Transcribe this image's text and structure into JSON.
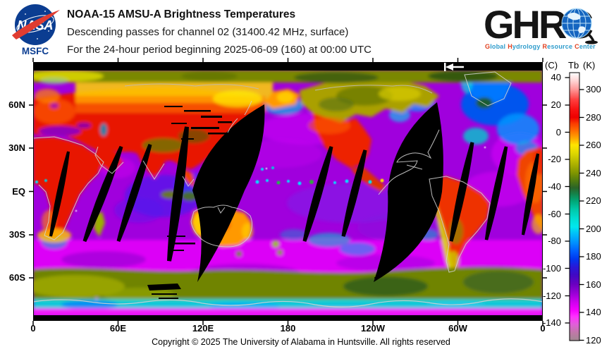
{
  "header": {
    "nasa": {
      "wordmark": "NASA",
      "caption": "MSFC"
    },
    "title": "NOAA-15 AMSU-A Brightness Temperatures",
    "subtitle1": "Descending passes for channel 02 (31400.42 MHz, surface)",
    "subtitle2": "For the 24-hour period beginning 2025-06-09 (160) at 00:00 UTC",
    "ghrc": {
      "letters": "GHRC",
      "tagline": [
        {
          "initial": "G",
          "rest": "lobal"
        },
        {
          "initial": "H",
          "rest": "ydrology"
        },
        {
          "initial": "R",
          "rest": "esource"
        },
        {
          "initial": "C",
          "rest": "enter"
        }
      ]
    }
  },
  "chart_data": {
    "type": "heatmap",
    "title": "NOAA-15 AMSU-A Brightness Temperatures",
    "projection": "equirectangular world map, 0E to 360E, 90N to 90S",
    "x_axis": {
      "tick_labels": [
        "0",
        "60E",
        "120E",
        "180",
        "120W",
        "60W",
        "0"
      ],
      "range_deg_east": [
        0,
        360
      ]
    },
    "y_axis": {
      "tick_labels": [
        "60N",
        "30N",
        "EQ",
        "30S",
        "60S"
      ],
      "range_deg_lat": [
        90,
        -90
      ]
    },
    "colorbar": {
      "unit_left": "(C)",
      "quantity": "Tb",
      "unit_right": "(K)",
      "celsius_tick_labels": [
        "40",
        "20",
        "0",
        "-20",
        "-40",
        "-60",
        "-80",
        "-100",
        "-120",
        "-140"
      ],
      "kelvin_tick_labels": [
        "300",
        "280",
        "260",
        "240",
        "220",
        "200",
        "180",
        "160",
        "140",
        "120"
      ],
      "kelvin_range_top_to_bottom": [
        312,
        120
      ],
      "gradient_stops": [
        [
          0,
          "#ffffff"
        ],
        [
          0.03,
          "#ffd5d5"
        ],
        [
          0.0625,
          "#ff9898"
        ],
        [
          0.1,
          "#ff4040"
        ],
        [
          0.135,
          "#f81414"
        ],
        [
          0.167,
          "#ee0000"
        ],
        [
          0.19,
          "#fa3c00"
        ],
        [
          0.215,
          "#ff6a00"
        ],
        [
          0.245,
          "#ffa800"
        ],
        [
          0.27,
          "#ffe400"
        ],
        [
          0.3,
          "#e0d800"
        ],
        [
          0.345,
          "#a8ae00"
        ],
        [
          0.375,
          "#7e9400"
        ],
        [
          0.405,
          "#4e7a10"
        ],
        [
          0.43,
          "#2a6428"
        ],
        [
          0.455,
          "#12864e"
        ],
        [
          0.48,
          "#00a878"
        ],
        [
          0.51,
          "#00c8a8"
        ],
        [
          0.545,
          "#00ded2"
        ],
        [
          0.575,
          "#00e8ee"
        ],
        [
          0.6,
          "#00c0f8"
        ],
        [
          0.635,
          "#0090ff"
        ],
        [
          0.665,
          "#0060ff"
        ],
        [
          0.695,
          "#0038f0"
        ],
        [
          0.725,
          "#2818d8"
        ],
        [
          0.755,
          "#4008c4"
        ],
        [
          0.79,
          "#6a00c0"
        ],
        [
          0.825,
          "#9c00d8"
        ],
        [
          0.855,
          "#cc00ee"
        ],
        [
          0.885,
          "#f400ff"
        ],
        [
          0.91,
          "#ff30ff"
        ],
        [
          0.94,
          "#e060d8"
        ],
        [
          0.97,
          "#c078a8"
        ],
        [
          1,
          "#a08890"
        ]
      ]
    },
    "visible_features": [
      "black diagonal gaps between descending satellite swaths",
      "warm land (red/orange/yellow) over Eurasia, Africa, Americas, Australia",
      "violet/magenta oceans with cyan and blue cold patches",
      "olive-green polar bands at top and bottom with white coastlines",
      "white left-pointing swath-direction arrow at top of map"
    ],
    "icons": {
      "swath_direction": "arrow-left-to-bar"
    }
  },
  "footer": {
    "copyright": "Copyright © 2025 The University of Alabama in Huntsville.  All rights reserved"
  }
}
